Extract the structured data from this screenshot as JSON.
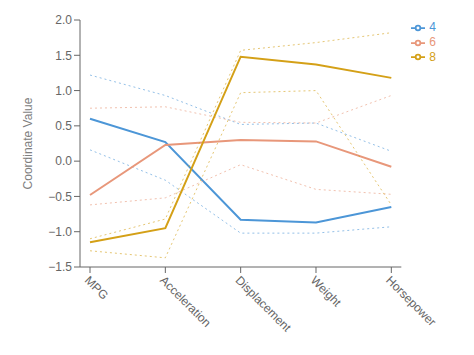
{
  "chart_data": {
    "type": "line",
    "categories": [
      "MPG",
      "Acceleration",
      "Displacement",
      "Weight",
      "Horsepower"
    ],
    "series": [
      {
        "name": "4",
        "color": "#4C96D7",
        "values": [
          0.6,
          0.27,
          -0.83,
          -0.87,
          -0.65
        ],
        "upper": [
          1.22,
          0.93,
          0.52,
          0.54,
          0.14
        ],
        "lower": [
          0.16,
          -0.27,
          -1.02,
          -1.02,
          -0.93
        ]
      },
      {
        "name": "6",
        "color": "#E8977A",
        "values": [
          -0.48,
          0.23,
          0.3,
          0.28,
          -0.08
        ],
        "upper": [
          0.75,
          0.77,
          0.55,
          0.54,
          0.93
        ],
        "lower": [
          -0.62,
          -0.52,
          -0.05,
          -0.4,
          -0.47
        ]
      },
      {
        "name": "8",
        "color": "#D4A017",
        "values": [
          -1.15,
          -0.95,
          1.48,
          1.37,
          1.18
        ],
        "upper": [
          -1.1,
          -0.82,
          1.57,
          1.68,
          1.82
        ],
        "lower": [
          -1.27,
          -1.37,
          0.97,
          1.0,
          -0.62
        ]
      }
    ],
    "ylabel": "Coordinate Value",
    "ylim": [
      -1.5,
      2.0
    ],
    "yticks": [
      {
        "value": -1.5,
        "label": "−1.5"
      },
      {
        "value": -1.0,
        "label": "−1.0"
      },
      {
        "value": -0.5,
        "label": "−0.5"
      },
      {
        "value": 0.0,
        "label": "0.0"
      },
      {
        "value": 0.5,
        "label": "0.5"
      },
      {
        "value": 1.0,
        "label": "1.0"
      },
      {
        "value": 1.5,
        "label": "1.5"
      },
      {
        "value": 2.0,
        "label": "2.0"
      }
    ],
    "legend": "upper right",
    "grid": false
  }
}
